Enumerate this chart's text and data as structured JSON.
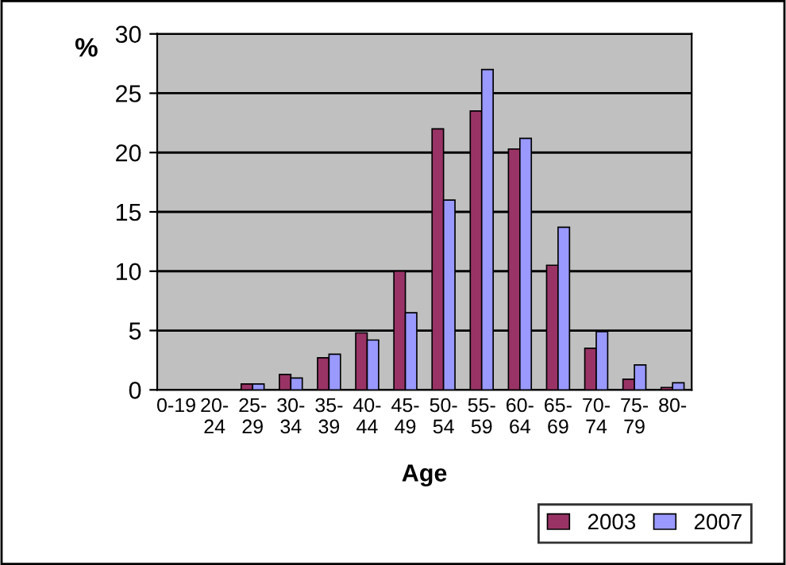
{
  "chart_data": {
    "type": "bar",
    "xlabel": "Age",
    "ylabel": "%",
    "categories": [
      "0-19",
      "20-\n24",
      "25-\n29",
      "30-\n34",
      "35-\n39",
      "40-\n44",
      "45-\n49",
      "50-\n54",
      "55-\n59",
      "60-\n64",
      "65-\n69",
      "70-\n74",
      "75-\n79",
      "80-"
    ],
    "series": [
      {
        "name": "2003",
        "color": "#993366",
        "values": [
          null,
          null,
          0.5,
          1.3,
          2.7,
          4.8,
          10.0,
          22.0,
          23.5,
          20.3,
          10.5,
          3.5,
          0.9,
          0.2
        ]
      },
      {
        "name": "2007",
        "color": "#9999ff",
        "values": [
          null,
          null,
          0.5,
          1.0,
          3.0,
          4.2,
          6.5,
          16.0,
          27.0,
          21.2,
          13.7,
          4.9,
          2.1,
          0.6
        ]
      }
    ],
    "ylim": [
      0,
      30
    ],
    "yticks": [
      0,
      5,
      10,
      15,
      20,
      25,
      30
    ],
    "grid": "y",
    "legend": "bottom right"
  }
}
